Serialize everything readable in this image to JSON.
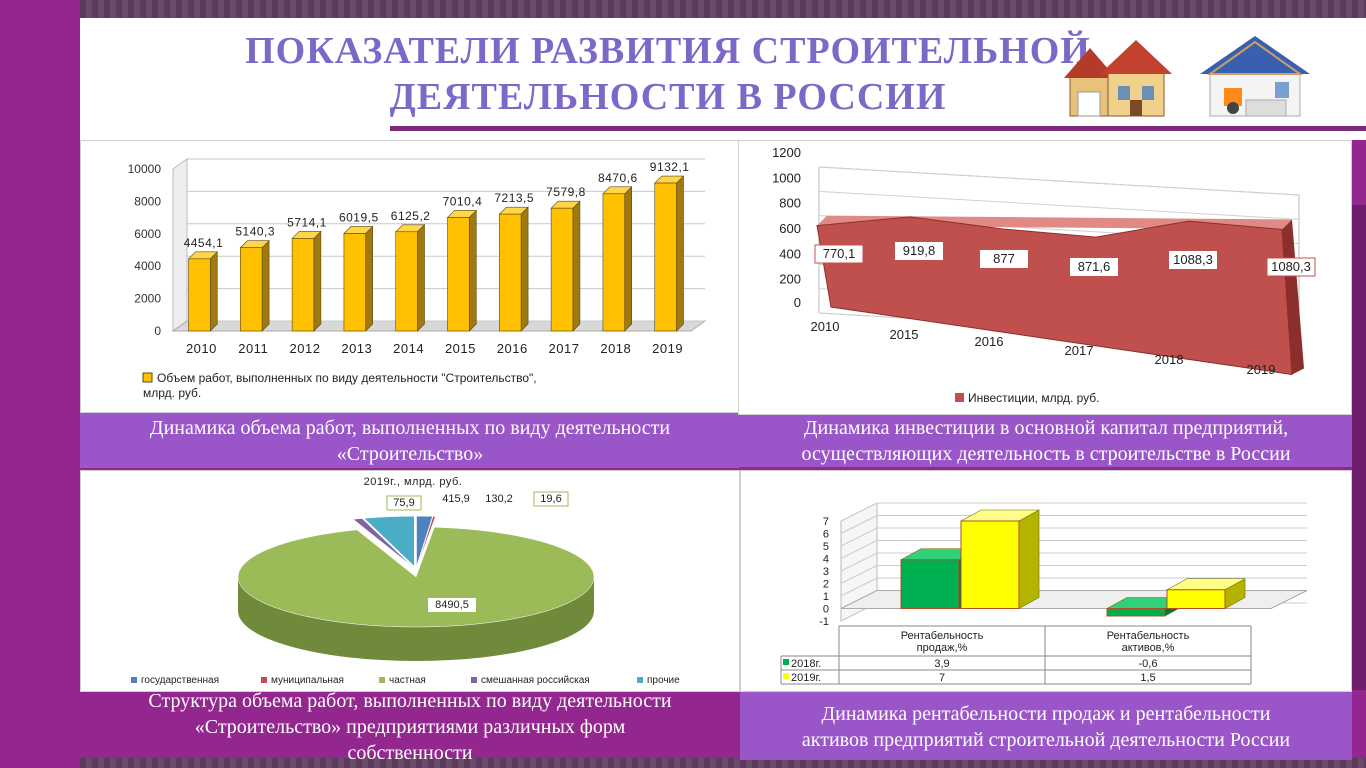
{
  "title": {
    "line1": "ПОКАЗАТЕЛИ РАЗВИТИЯ СТРОИТЕЛЬНОЙ",
    "line2": "ДЕЯТЕЛЬНОСТИ  В РОССИИ"
  },
  "captions": {
    "c1_line1": "Динамика объема работ, выполненных по виду деятельности",
    "c1_line2": "«Строительство»",
    "c2_line1": "Динамика инвестиции в основной капитал предприятий,",
    "c2_line2": "осуществляющих деятельность в строительстве в России",
    "c3_line1": "Структура объема работ, выполненных по виду деятельности",
    "c3_line2": "«Строительство» предприятиями различных форм",
    "c3_line3": "собственности",
    "c4_line1": "Динамика рентабельности продаж и рентабельности",
    "c4_line2": "активов предприятий строительной деятельности России"
  },
  "colors": {
    "accent_purple": "#93278f",
    "title_text": "#7b68c8",
    "caption_bg": "#9a55c9",
    "bar_yellow": "#ffc000",
    "area_red": "#c0504d",
    "pie_green": "#9bbb59",
    "green_bar": "#00b050",
    "yellow_bar": "#ffff00"
  },
  "chart_data": [
    {
      "type": "bar",
      "categories": [
        "2010",
        "2011",
        "2012",
        "2013",
        "2014",
        "2015",
        "2016",
        "2017",
        "2018",
        "2019"
      ],
      "values": [
        4454.1,
        5140.3,
        5714.1,
        6019.5,
        6125.2,
        7010.4,
        7213.5,
        7579.8,
        8470.6,
        9132.1
      ],
      "value_labels": [
        "4454,1",
        "5140,3",
        "5714,1",
        "6019,5",
        "6125,2",
        "7010,4",
        "7213,5",
        "7579,8",
        "8470,6",
        "9132,1"
      ],
      "yticks": [
        "0",
        "2000",
        "4000",
        "6000",
        "8000",
        "10000"
      ],
      "ylim": [
        0,
        10000
      ],
      "legend": "Объем работ, выполненных по виду деятельности \"Строительство\",",
      "legend2": "млрд. руб.",
      "legend_position": "bottom"
    },
    {
      "type": "area",
      "categories": [
        "2010",
        "2015",
        "2016",
        "2017",
        "2018",
        "2019"
      ],
      "values": [
        770.1,
        919.8,
        877,
        871.6,
        1088.3,
        1080.3
      ],
      "value_labels": [
        "770,1",
        "919,8",
        "877",
        "871,6",
        "1088,3",
        "1080,3"
      ],
      "yticks": [
        "0",
        "200",
        "400",
        "600",
        "800",
        "1000",
        "1200"
      ],
      "ylim": [
        0,
        1200
      ],
      "legend": "Инвестиции, млрд. руб.",
      "legend_position": "bottom"
    },
    {
      "type": "pie",
      "title": "2019г., млрд. руб.",
      "labels": [
        "государственная",
        "муниципальная",
        "частная",
        "смешанная российская",
        "прочие"
      ],
      "values": [
        130.2,
        19.6,
        8490.5,
        75.9,
        415.9
      ],
      "value_labels": [
        "130,2",
        "19,6",
        "8490,5",
        "75,9",
        "415,9"
      ],
      "colors": [
        "#4f81bd",
        "#c0504d",
        "#9bbb59",
        "#8064a2",
        "#4bacc6"
      ],
      "legend_position": "bottom"
    },
    {
      "type": "bar",
      "categories_line1": [
        "Рентабельность",
        "Рентабельность"
      ],
      "categories_line2": [
        "продаж,%",
        "активов,%"
      ],
      "series": [
        {
          "name": "2018г.",
          "values": [
            3.9,
            -0.6
          ],
          "value_labels": [
            "3,9",
            "-0,6"
          ]
        },
        {
          "name": "2019г.",
          "values": [
            7,
            1.5
          ],
          "value_labels": [
            "7",
            "1,5"
          ]
        }
      ],
      "yticks": [
        "-1",
        "0",
        "1",
        "2",
        "3",
        "4",
        "5",
        "6",
        "7"
      ],
      "ylim": [
        -1,
        7
      ],
      "data_table": true
    }
  ]
}
